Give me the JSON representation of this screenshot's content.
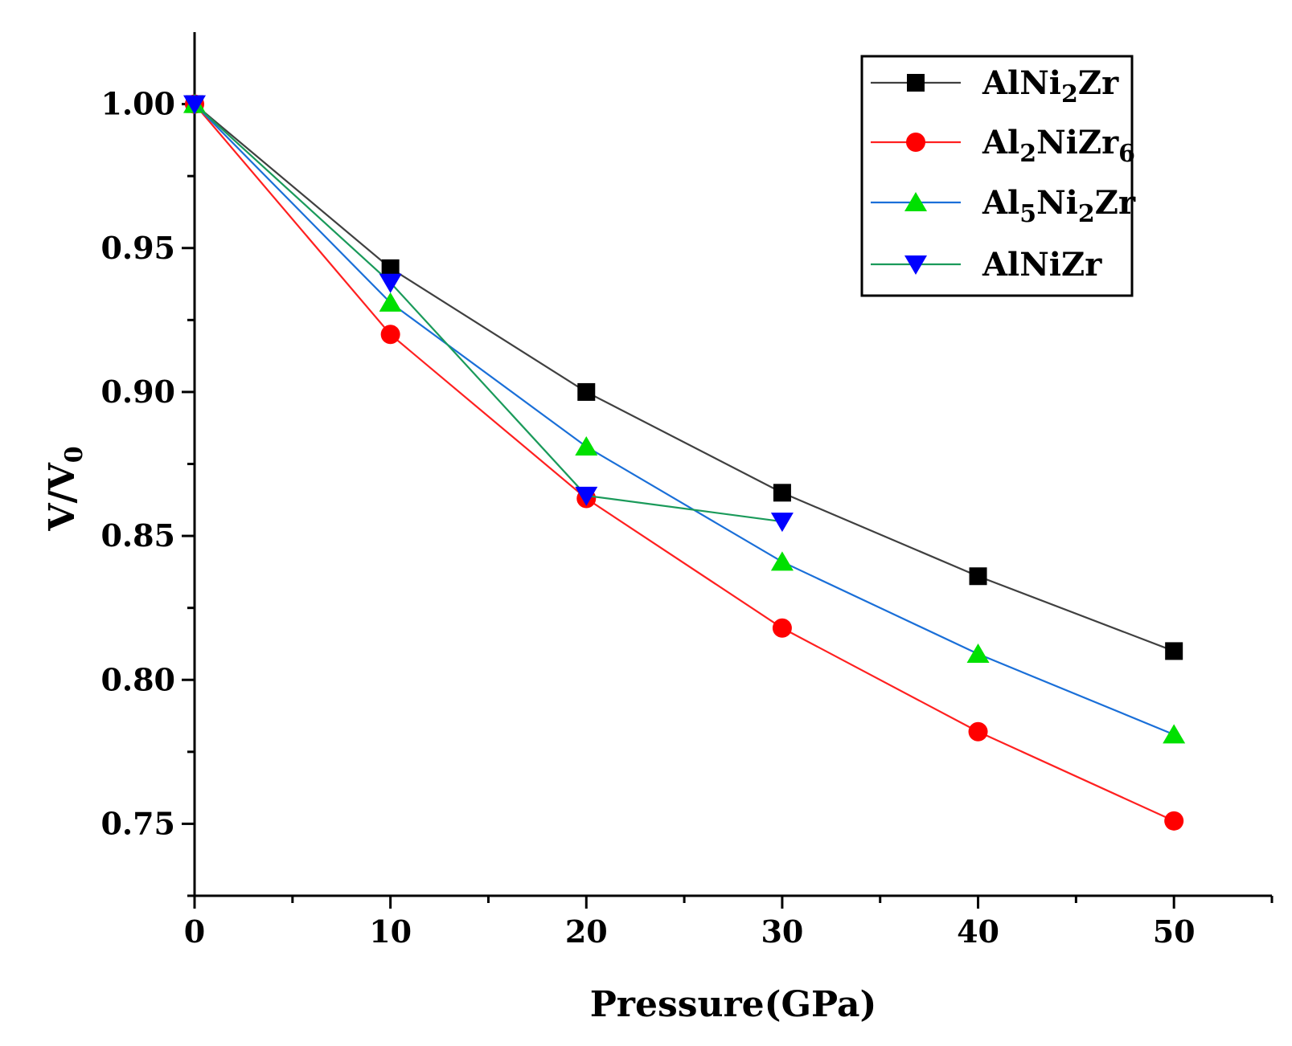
{
  "chart_data": {
    "type": "line",
    "title": "",
    "xlabel": "Pressure(GPa)",
    "ylabel": "V/V0",
    "ylabel_parts": {
      "main": "V/V",
      "sub": "0"
    },
    "xlim": [
      0,
      55
    ],
    "ylim": [
      0.725,
      1.025
    ],
    "xticks": [
      0,
      10,
      20,
      30,
      40,
      50
    ],
    "xtick_labels": [
      "0",
      "10",
      "20",
      "30",
      "40",
      "50"
    ],
    "yticks": [
      0.75,
      0.8,
      0.85,
      0.9,
      0.95,
      1.0
    ],
    "ytick_labels": [
      "0.75",
      "0.80",
      "0.85",
      "0.90",
      "0.95",
      "1.00"
    ],
    "grid": false,
    "legend_position": "top-right",
    "series": [
      {
        "name": "AlNi2Zr",
        "label_parts": [
          {
            "t": "AlNi"
          },
          {
            "t": "2",
            "sub": true
          },
          {
            "t": "Zr"
          }
        ],
        "color": "#404040",
        "marker": "square",
        "marker_color": "#000000",
        "x": [
          0,
          10,
          20,
          30,
          40,
          50
        ],
        "y": [
          1.0,
          0.943,
          0.9,
          0.865,
          0.836,
          0.81
        ]
      },
      {
        "name": "Al2NiZr6",
        "label_parts": [
          {
            "t": "Al"
          },
          {
            "t": "2",
            "sub": true
          },
          {
            "t": "NiZr"
          },
          {
            "t": "6",
            "sub": true
          }
        ],
        "color": "#ff2020",
        "marker": "circle",
        "marker_color": "#ff0000",
        "x": [
          0,
          10,
          20,
          30,
          40,
          50
        ],
        "y": [
          1.0,
          0.92,
          0.863,
          0.818,
          0.782,
          0.751
        ]
      },
      {
        "name": "Al5Ni2Zr",
        "label_parts": [
          {
            "t": "Al"
          },
          {
            "t": "5",
            "sub": true
          },
          {
            "t": "Ni"
          },
          {
            "t": "2",
            "sub": true
          },
          {
            "t": "Zr"
          }
        ],
        "color": "#1a6fd8",
        "marker": "triangle-up",
        "marker_color": "#00e000",
        "x": [
          0,
          10,
          20,
          30,
          40,
          50
        ],
        "y": [
          1.0,
          0.931,
          0.881,
          0.841,
          0.809,
          0.781
        ]
      },
      {
        "name": "AlNiZr",
        "label_parts": [
          {
            "t": "AlNiZr"
          }
        ],
        "color": "#1a9a5a",
        "marker": "triangle-down",
        "marker_color": "#0000ff",
        "x": [
          0,
          10,
          20,
          30
        ],
        "y": [
          1.0,
          0.938,
          0.864,
          0.855
        ]
      }
    ]
  }
}
